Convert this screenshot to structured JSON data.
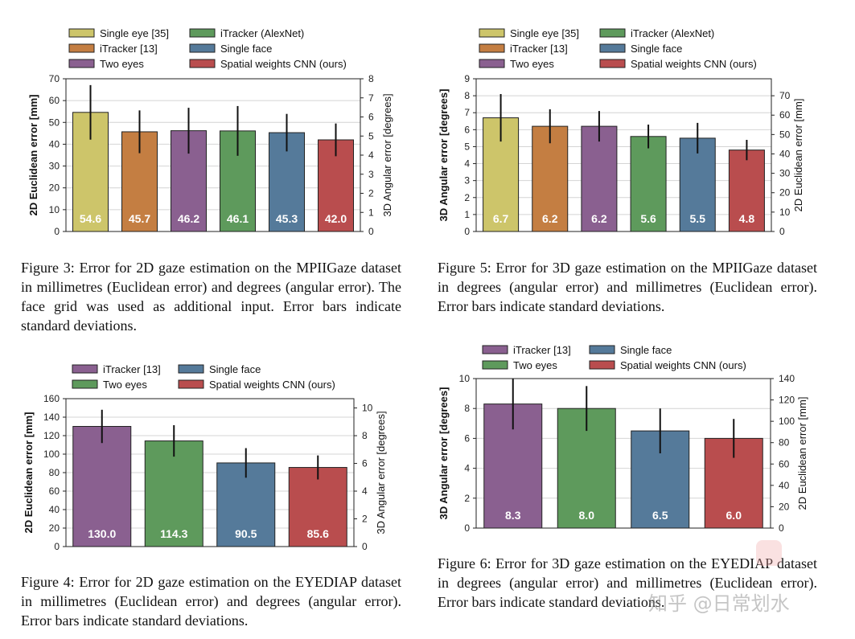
{
  "colors": {
    "single_eye": "#cdc56a",
    "itracker_13": "#c47e42",
    "two_eyes": "#8a6090",
    "itracker_alexnet": "#5e9a5c",
    "single_face": "#557a9a",
    "spatial_weights": "#b94d4e"
  },
  "chart_data": [
    {
      "id": "fig3",
      "type": "bar",
      "categories": [
        "Single eye [35]",
        "iTracker [13]",
        "Two eyes",
        "iTracker (AlexNet)",
        "Single face",
        "Spatial weights CNN (ours)"
      ],
      "values": [
        54.6,
        45.7,
        46.2,
        46.1,
        45.3,
        42.0
      ],
      "errors": [
        12.5,
        9.8,
        10.5,
        11.4,
        8.6,
        7.5
      ],
      "value_labels": [
        "54.6",
        "45.7",
        "46.2",
        "46.1",
        "45.3",
        "42.0"
      ],
      "bar_colors": [
        "single_eye",
        "itracker_13",
        "two_eyes",
        "itracker_alexnet",
        "single_face",
        "spatial_weights"
      ],
      "ylabel": "2D Euclidean error [mm]",
      "ylim": [
        0,
        70
      ],
      "yticks": [
        0,
        10,
        20,
        30,
        40,
        50,
        60,
        70
      ],
      "ytick_labels": [
        "0",
        "10",
        "20",
        "30",
        "40",
        "50",
        "60",
        "70"
      ],
      "y2label": "3D Angular error [degrees]",
      "y2lim": [
        0,
        8
      ],
      "y2ticks": [
        0,
        1,
        2,
        3,
        4,
        5,
        6,
        7,
        8
      ],
      "y2tick_labels": [
        "0",
        "1",
        "2",
        "3",
        "4",
        "5",
        "6",
        "7",
        "8"
      ],
      "legend": [
        "Single eye [35]",
        "iTracker (AlexNet)",
        "iTracker [13]",
        "Single face",
        "Two eyes",
        "Spatial weights CNN (ours)"
      ],
      "legend_colors": [
        "single_eye",
        "itracker_alexnet",
        "itracker_13",
        "single_face",
        "two_eyes",
        "spatial_weights"
      ],
      "legend_columns": 2,
      "grid": true
    },
    {
      "id": "fig5",
      "type": "bar",
      "categories": [
        "Single eye [35]",
        "iTracker [13]",
        "Two eyes",
        "iTracker (AlexNet)",
        "Single face",
        "Spatial weights CNN (ours)"
      ],
      "values": [
        6.7,
        6.2,
        6.2,
        5.6,
        5.5,
        4.8
      ],
      "errors": [
        1.4,
        1.0,
        0.9,
        0.7,
        0.9,
        0.6
      ],
      "value_labels": [
        "6.7",
        "6.2",
        "6.2",
        "5.6",
        "5.5",
        "4.8"
      ],
      "bar_colors": [
        "single_eye",
        "itracker_13",
        "two_eyes",
        "itracker_alexnet",
        "single_face",
        "spatial_weights"
      ],
      "ylabel": "3D Angular error [degrees]",
      "ylim": [
        0,
        9
      ],
      "yticks": [
        0,
        1,
        2,
        3,
        4,
        5,
        6,
        7,
        8,
        9
      ],
      "ytick_labels": [
        "0",
        "1",
        "2",
        "3",
        "4",
        "5",
        "6",
        "7",
        "8",
        "9"
      ],
      "y2label": "2D Euclidean error [mm]",
      "y2lim": [
        0,
        78.75
      ],
      "y2ticks": [
        0,
        10,
        20,
        30,
        40,
        50,
        60,
        70
      ],
      "y2tick_labels": [
        "0",
        "10",
        "20",
        "30",
        "40",
        "50",
        "60",
        "70"
      ],
      "legend": [
        "Single eye [35]",
        "iTracker (AlexNet)",
        "iTracker [13]",
        "Single face",
        "Two eyes",
        "Spatial weights CNN (ours)"
      ],
      "legend_colors": [
        "single_eye",
        "itracker_alexnet",
        "itracker_13",
        "single_face",
        "two_eyes",
        "spatial_weights"
      ],
      "legend_columns": 2,
      "grid": true
    },
    {
      "id": "fig4",
      "type": "bar",
      "categories": [
        "iTracker [13]",
        "Two eyes",
        "Single face",
        "Spatial weights CNN (ours)"
      ],
      "values": [
        130.0,
        114.3,
        90.5,
        85.6
      ],
      "errors": [
        18,
        17,
        16,
        13
      ],
      "value_labels": [
        "130.0",
        "114.3",
        "90.5",
        "85.6"
      ],
      "bar_colors": [
        "two_eyes",
        "itracker_alexnet",
        "single_face",
        "spatial_weights"
      ],
      "ylabel": "2D Euclidean error [mm]",
      "ylim": [
        0,
        160
      ],
      "yticks": [
        0,
        20,
        40,
        60,
        80,
        100,
        120,
        140,
        160
      ],
      "ytick_labels": [
        "0",
        "20",
        "40",
        "60",
        "80",
        "100",
        "120",
        "140",
        "160"
      ],
      "y2label": "3D Angular error [degrees]",
      "y2lim": [
        0,
        10.67
      ],
      "y2ticks": [
        0,
        2,
        4,
        6,
        8,
        10
      ],
      "y2tick_labels": [
        "0",
        "2",
        "4",
        "6",
        "8",
        "10"
      ],
      "legend": [
        "iTracker [13]",
        "Single face",
        "Two eyes",
        "Spatial weights CNN (ours)"
      ],
      "legend_colors": [
        "two_eyes",
        "single_face",
        "itracker_alexnet",
        "spatial_weights"
      ],
      "legend_columns": 2,
      "grid": true
    },
    {
      "id": "fig6",
      "type": "bar",
      "categories": [
        "iTracker [13]",
        "Two eyes",
        "Single face",
        "Spatial weights CNN (ours)"
      ],
      "values": [
        8.3,
        8.0,
        6.5,
        6.0
      ],
      "errors": [
        1.7,
        1.5,
        1.5,
        1.3
      ],
      "value_labels": [
        "8.3",
        "8.0",
        "6.5",
        "6.0"
      ],
      "bar_colors": [
        "two_eyes",
        "itracker_alexnet",
        "single_face",
        "spatial_weights"
      ],
      "ylabel": "3D Angular error [degrees]",
      "ylim": [
        0,
        10
      ],
      "yticks": [
        0,
        2,
        4,
        6,
        8,
        10
      ],
      "ytick_labels": [
        "0",
        "2",
        "4",
        "6",
        "8",
        "10"
      ],
      "y2label": "2D Euclidean error [mm]",
      "y2lim": [
        0,
        140
      ],
      "y2ticks": [
        0,
        20,
        40,
        60,
        80,
        100,
        120,
        140
      ],
      "y2tick_labels": [
        "0",
        "20",
        "40",
        "60",
        "80",
        "100",
        "120",
        "140"
      ],
      "legend": [
        "iTracker [13]",
        "Single face",
        "Two eyes",
        "Spatial weights CNN (ours)"
      ],
      "legend_colors": [
        "two_eyes",
        "single_face",
        "itracker_alexnet",
        "spatial_weights"
      ],
      "legend_columns": 2,
      "grid": true
    }
  ],
  "captions": {
    "fig3": "Figure 3: Error for 2D gaze estimation on the MPIIGaze dataset in millimetres (Euclidean error) and degrees (angular error). The face grid was used as additional input. Error bars indicate standard deviations.",
    "fig5": "Figure 5: Error for 3D gaze estimation on the MPIIGaze dataset in degrees (angular error) and millimetres (Euclidean error). Error bars indicate standard deviations.",
    "fig4": "Figure 4: Error for 2D gaze estimation on the EYEDIAP dataset in millimetres (Euclidean error) and degrees (angular error). Error bars indicate standard deviations.",
    "fig6": "Figure 6: Error for 3D gaze estimation on the EYEDIAP dataset in degrees (angular error) and millimetres (Euclidean error). Error bars indicate standard deviations."
  },
  "watermark": "知乎 @日常划水"
}
